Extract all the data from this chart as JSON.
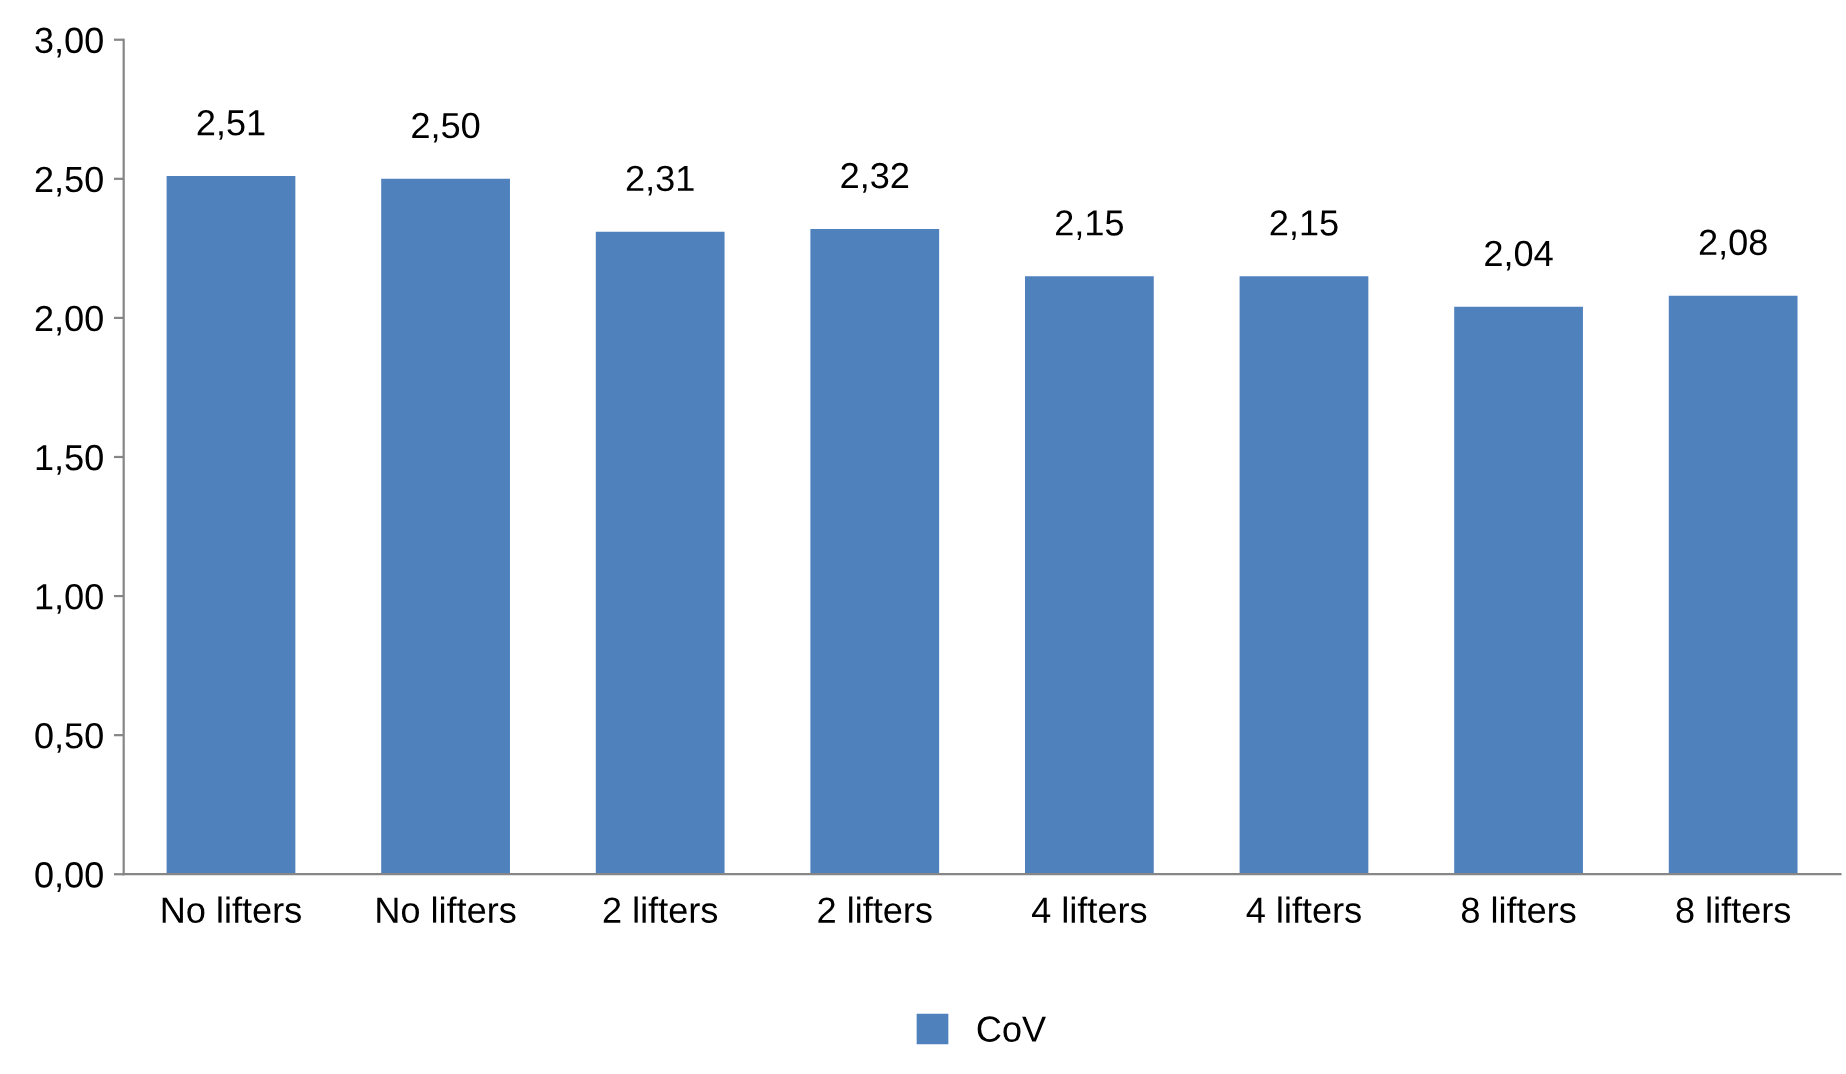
{
  "chart_data": {
    "type": "bar",
    "categories": [
      "No lifters",
      "No lifters",
      "2 lifters",
      "2 lifters",
      "4 lifters",
      "4 lifters",
      "8 lifters",
      "8 lifters"
    ],
    "series": [
      {
        "name": "CoV",
        "color": "#4f81bd",
        "values": [
          2.51,
          2.5,
          2.31,
          2.32,
          2.15,
          2.15,
          2.04,
          2.08
        ],
        "value_labels": [
          "2,51",
          "2,50",
          "2,31",
          "2,32",
          "2,15",
          "2,15",
          "2,04",
          "2,08"
        ]
      }
    ],
    "ylim": [
      0,
      3
    ],
    "yticks": [
      {
        "value": 0,
        "label": "0,00"
      },
      {
        "value": 0.5,
        "label": "0,50"
      },
      {
        "value": 1,
        "label": "1,00"
      },
      {
        "value": 1.5,
        "label": "1,50"
      },
      {
        "value": 2,
        "label": "2,00"
      },
      {
        "value": 2.5,
        "label": "2,50"
      },
      {
        "value": 3,
        "label": "3,00"
      }
    ],
    "grid": false,
    "legend": "bottom"
  }
}
